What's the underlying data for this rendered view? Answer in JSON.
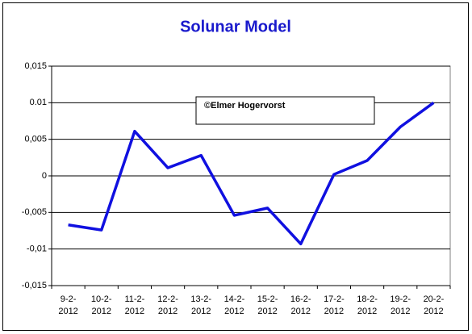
{
  "chart_data": {
    "type": "line",
    "title": "Solunar Model",
    "annotation": "©Elmer Hogervorst",
    "categories": [
      "9-2-2012",
      "10-2-2012",
      "11-2-2012",
      "12-2-2012",
      "13-2-2012",
      "14-2-2012",
      "15-2-2012",
      "16-2-2012",
      "17-2-2012",
      "18-2-2012",
      "19-2-2012",
      "20-2-2012"
    ],
    "series": [
      {
        "name": "Solunar Model",
        "color": "#1010e0",
        "values": [
          -0.0067,
          -0.0074,
          0.0061,
          0.0011,
          0.0028,
          -0.0054,
          -0.0044,
          -0.0093,
          0.0002,
          0.0021,
          0.0067,
          0.01
        ]
      }
    ],
    "ylim": [
      -0.015,
      0.015
    ],
    "yticks": [
      {
        "value": -0.015,
        "label": "-0,015"
      },
      {
        "value": -0.01,
        "label": "-0,01"
      },
      {
        "value": -0.005,
        "label": "-0,005"
      },
      0,
      {
        "value": 0.005,
        "label": "0,005"
      },
      0.01,
      {
        "value": 0.015,
        "label": "0,015"
      }
    ],
    "grid": true,
    "legend": false
  }
}
